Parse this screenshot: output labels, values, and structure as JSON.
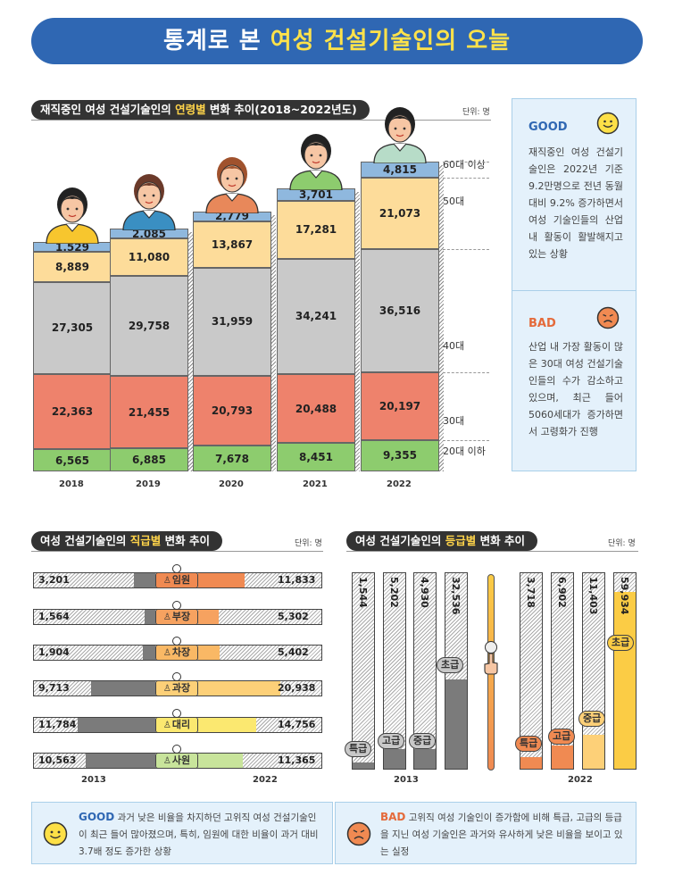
{
  "banner": {
    "prefix": "통계로 본 ",
    "highlight": "여성 건설기술인의 오늘"
  },
  "age_chart": {
    "title_prefix": "재직중인 여성 건설기술인의 ",
    "title_highlight": "연령별",
    "title_suffix": " 변화 추이(2018~2022년도)",
    "unit": "단위: 명"
  },
  "panel_good": {
    "label": "GOOD",
    "text": "재직중인 여성 건설기술인은 2022년 기준 9.2만명으로 전년 동월 대비 9.2% 증가하면서 여성 기술인들의 산업 내 활동이 활발해지고 있는 상황"
  },
  "panel_bad": {
    "label": "BAD",
    "text": "산업 내 가장 활동이 많은 30대 여성 건설기술인들의 수가 감소하고 있으며, 최근 들어 5060세대가 증가하면서 고령화가 진행"
  },
  "position_chart": {
    "title_prefix": "여성 건설기술인의 ",
    "title_highlight": "직급별",
    "title_suffix": " 변화 추이",
    "unit": "단위: 명"
  },
  "grade_chart": {
    "title_prefix": "여성 건설기술인의 ",
    "title_highlight": "등급별",
    "title_suffix": " 변화 추이",
    "unit": "단위: 명"
  },
  "bottom_good": {
    "label": "GOOD",
    "text": "과거 낮은 비율을 차지하던 고위직 여성 건설기술인이 최근 들어 많아졌으며, 특히, 임원에 대한 비율이 과거 대비 3.7배 정도 증가한 상황"
  },
  "bottom_bad": {
    "label": "BAD",
    "text": "고위직 여성 기술인이 증가함에 비해 특급, 고급의 등급을 지닌 여성 기술인은 과거와 유사하게 낮은 비율을 보이고 있는 실정"
  },
  "colors": {
    "banner": "#2f67b3",
    "age20": "#8dcc6e",
    "age30": "#ee826c",
    "age40": "#c9c9c9",
    "age50": "#fddc9a",
    "age60": "#8fb8de",
    "grade2013": "#7b7b7b",
    "grade2022_low": "#f08a52",
    "grade2022_mid": "#fdd078",
    "grade2022_top": "#fbcc45"
  },
  "chart_data": [
    {
      "type": "bar",
      "stacked": true,
      "categories": [
        "2018",
        "2019",
        "2020",
        "2021",
        "2022"
      ],
      "series": [
        {
          "name": "20대 이하",
          "values": [
            6565,
            6885,
            7678,
            8451,
            9355
          ]
        },
        {
          "name": "30대",
          "values": [
            22363,
            21455,
            20793,
            20488,
            20197
          ]
        },
        {
          "name": "40대",
          "values": [
            27305,
            29758,
            31959,
            34241,
            36516
          ]
        },
        {
          "name": "50대",
          "values": [
            8889,
            11080,
            13867,
            17281,
            21073
          ]
        },
        {
          "name": "60대 이상",
          "values": [
            1529,
            2085,
            2779,
            3701,
            4815
          ]
        }
      ],
      "value_labels": {
        "20대 이하": [
          "6,565",
          "6,885",
          "7,678",
          "8,451",
          "9,355"
        ],
        "30대": [
          "22,363",
          "21,455",
          "20,793",
          "20,488",
          "20,197"
        ],
        "40대": [
          "27,305",
          "29,758",
          "31,959",
          "34,241",
          "36,516"
        ],
        "50대": [
          "8,889",
          "11,080",
          "13,867",
          "17,281",
          "21,073"
        ],
        "60대 이상": [
          "1,529",
          "2,085",
          "2,779",
          "3,701",
          "4,815"
        ]
      }
    },
    {
      "type": "bar",
      "orientation": "horizontal",
      "x": [
        "2013",
        "2022"
      ],
      "categories": [
        "임원",
        "부장",
        "차장",
        "과장",
        "대리",
        "사원"
      ],
      "series": [
        {
          "name": "2013",
          "values": [
            3201,
            1564,
            1904,
            9713,
            11784,
            10563
          ],
          "labels": [
            "3,201",
            "1,564",
            "1,904",
            "9,713",
            "11,784",
            "10,563"
          ]
        },
        {
          "name": "2022",
          "values": [
            11833,
            5302,
            5402,
            20938,
            14756,
            11365
          ],
          "labels": [
            "11,833",
            "5,302",
            "5,402",
            "20,938",
            "14,756",
            "11,365"
          ]
        }
      ],
      "fill_colors_2022": [
        "#f08a52",
        "#f6a260",
        "#f9b865",
        "#fdd078",
        "#fbe870",
        "#c8e49b"
      ]
    },
    {
      "type": "bar",
      "x": [
        "2013",
        "2022"
      ],
      "categories": [
        "특급",
        "고급",
        "중급",
        "초급"
      ],
      "series": [
        {
          "name": "2013",
          "values": [
            1544,
            5202,
            4930,
            32536
          ],
          "labels": [
            "1,544",
            "5,202",
            "4,930",
            "32,536"
          ]
        },
        {
          "name": "2022",
          "values": [
            3718,
            6902,
            11403,
            59934
          ],
          "labels": [
            "3,718",
            "6,902",
            "11,403",
            "59,934"
          ]
        }
      ]
    }
  ]
}
